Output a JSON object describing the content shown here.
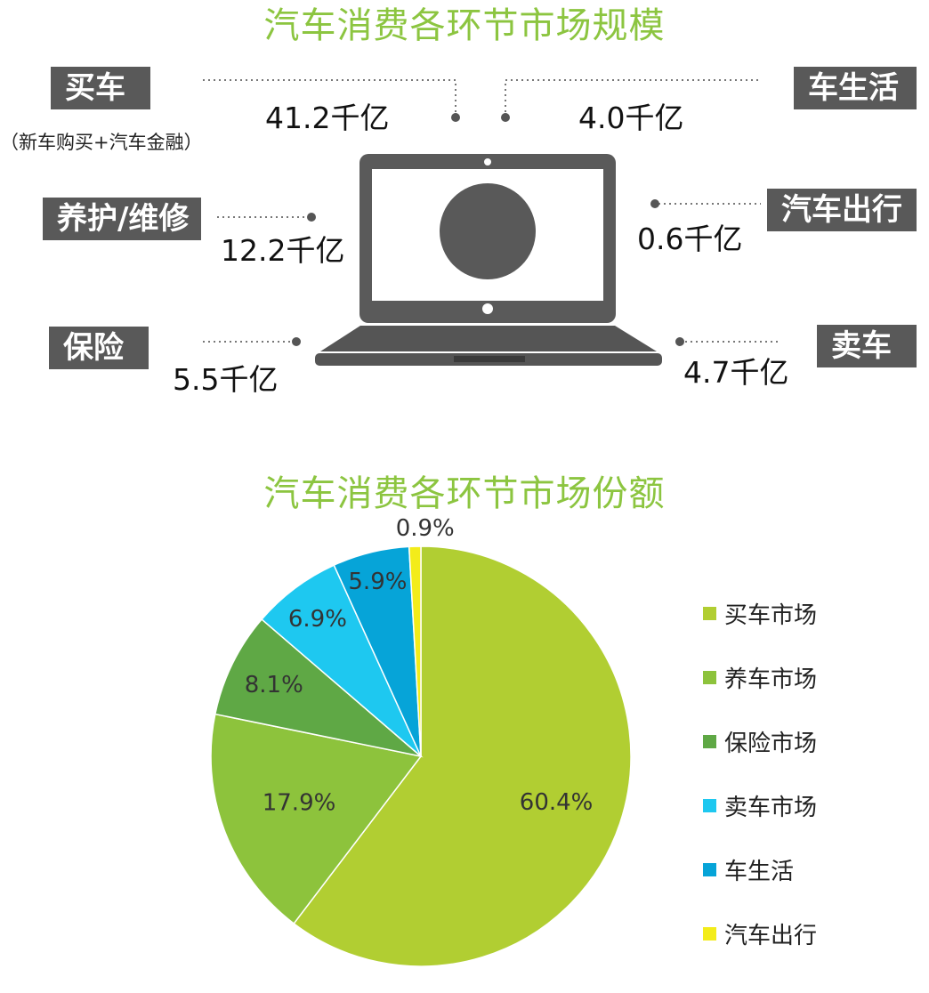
{
  "scale": {
    "title": "汽车消费各环节市场规模",
    "items": [
      {
        "key": "buy",
        "label": "买车",
        "note": "（新车购买+汽车金融）",
        "value": "41.2千亿"
      },
      {
        "key": "life",
        "label": "车生活",
        "value": "4.0千亿"
      },
      {
        "key": "maint",
        "label": "养护/维修",
        "value": "12.2千亿"
      },
      {
        "key": "travel",
        "label": "汽车出行",
        "value": "0.6千亿"
      },
      {
        "key": "ins",
        "label": "保险",
        "value": "5.5千亿"
      },
      {
        "key": "sell",
        "label": "卖车",
        "value": "4.7千亿"
      }
    ]
  },
  "chart_data": {
    "type": "pie",
    "title": "汽车消费各环节市场份额",
    "start_angle_deg": 0,
    "direction": "clockwise",
    "legend_position": "right",
    "slices": [
      {
        "name": "买车市场",
        "value": 60.4,
        "label": "60.4%",
        "color": "#b1ce32"
      },
      {
        "name": "养车市场",
        "value": 17.9,
        "label": "17.9%",
        "color": "#8dc33c"
      },
      {
        "name": "保险市场",
        "value": 8.1,
        "label": "8.1%",
        "color": "#5fa845"
      },
      {
        "name": "卖车市场",
        "value": 6.9,
        "label": "6.9%",
        "color": "#1ec8f0"
      },
      {
        "name": "车生活",
        "value": 5.9,
        "label": "5.9%",
        "color": "#06a4d8"
      },
      {
        "name": "汽车出行",
        "value": 0.9,
        "label": "0.9%",
        "color": "#f3ec1a"
      }
    ]
  }
}
